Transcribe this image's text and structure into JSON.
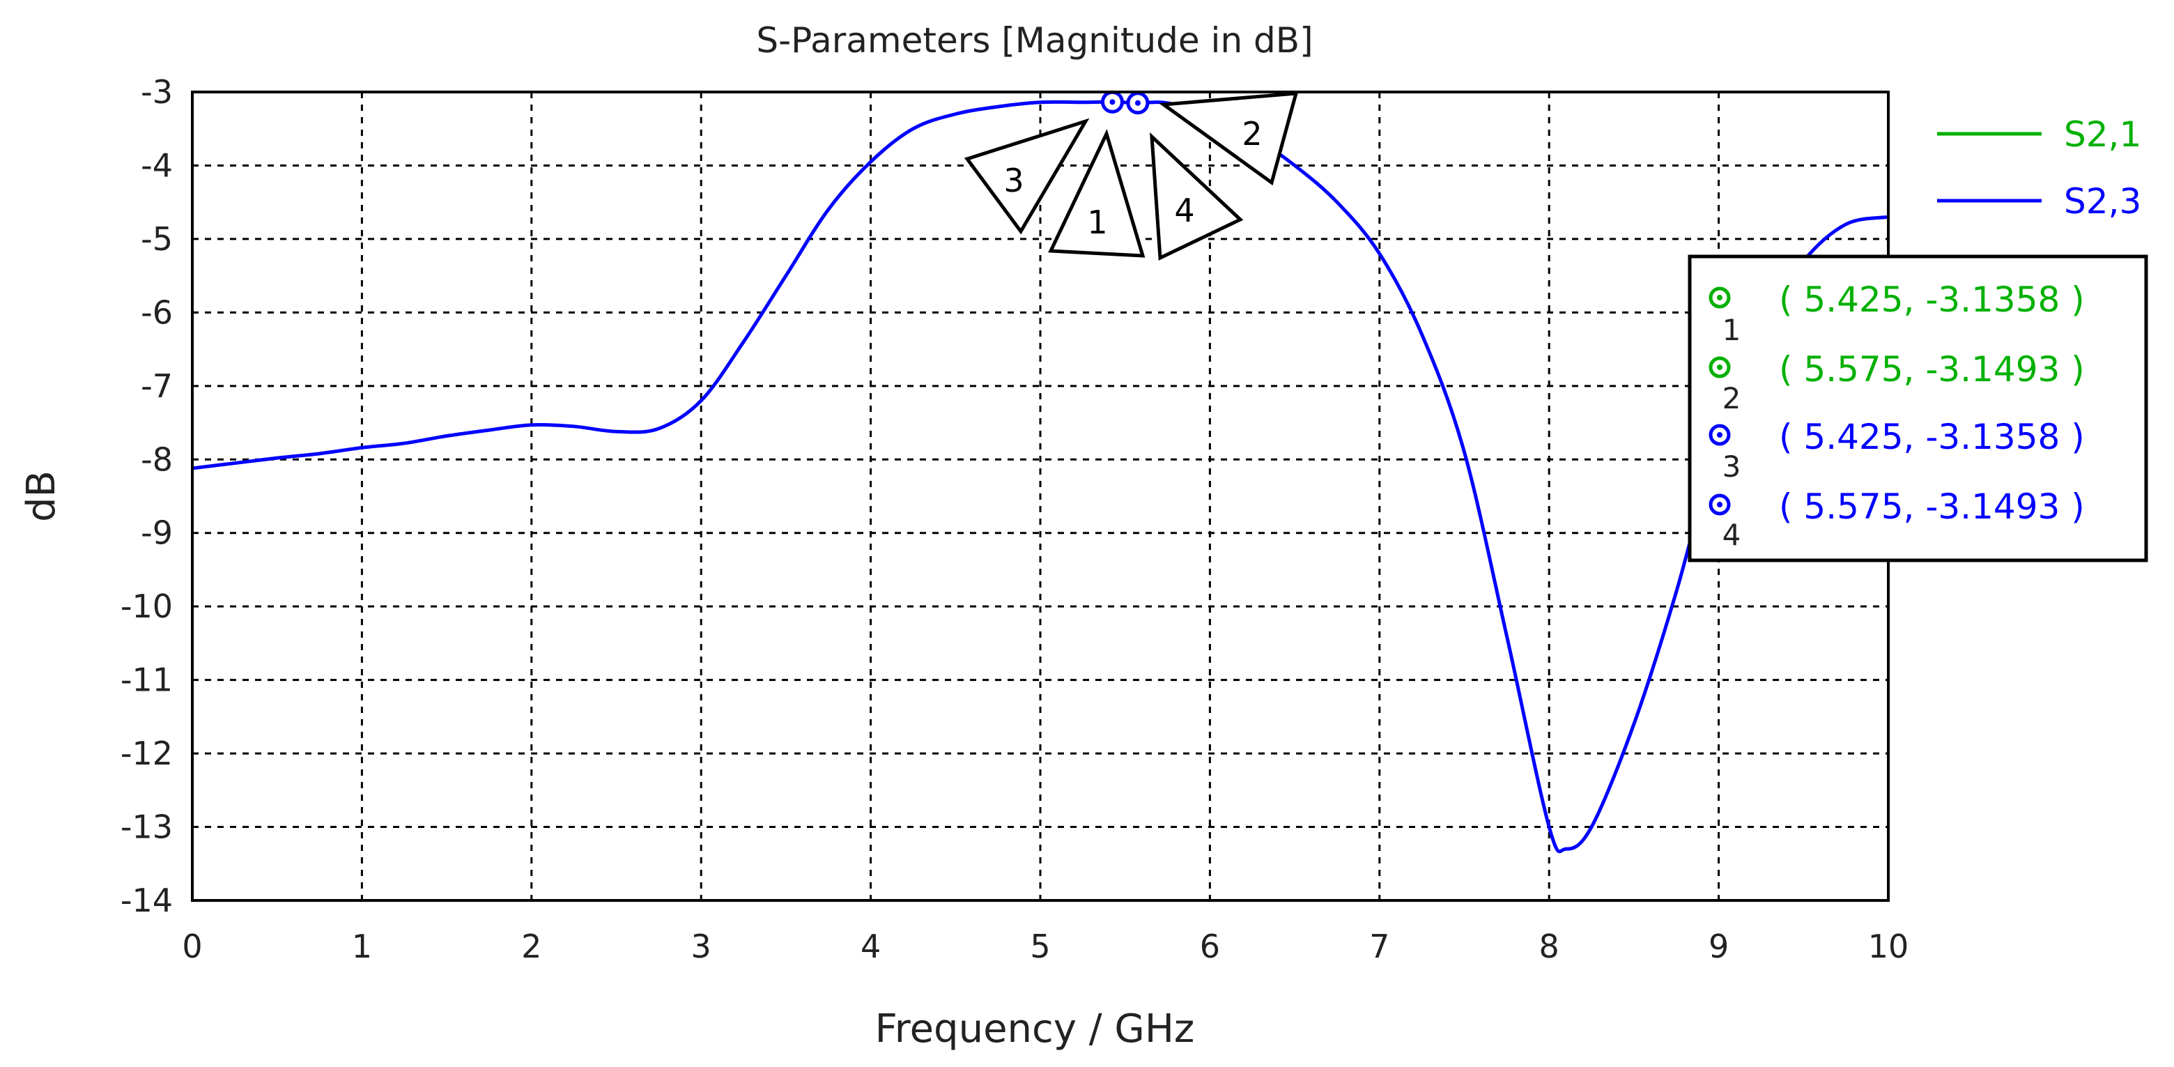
{
  "chart_data": {
    "type": "line",
    "title": "S-Parameters [Magnitude in dB]",
    "xlabel": "Frequency / GHz",
    "ylabel": "dB",
    "xlim": [
      0,
      10
    ],
    "ylim": [
      -14,
      -3
    ],
    "xticks": [
      0,
      1,
      2,
      3,
      4,
      5,
      6,
      7,
      8,
      9,
      10
    ],
    "yticks": [
      -3,
      -4,
      -5,
      -6,
      -7,
      -8,
      -9,
      -10,
      -11,
      -12,
      -13,
      -14
    ],
    "grid": true,
    "legend_position": "right",
    "series": [
      {
        "name": "S2,1",
        "color": "#00b000",
        "x": [],
        "y": []
      },
      {
        "name": "S2,3",
        "color": "#0000ff",
        "x": [
          0,
          0.25,
          0.5,
          0.75,
          1.0,
          1.25,
          1.5,
          1.75,
          2.0,
          2.25,
          2.5,
          2.75,
          3.0,
          3.25,
          3.5,
          3.75,
          4.0,
          4.25,
          4.5,
          4.75,
          5.0,
          5.25,
          5.425,
          5.575,
          5.75,
          6.0,
          6.25,
          6.5,
          6.75,
          7.0,
          7.25,
          7.5,
          7.75,
          8.0,
          8.1,
          8.25,
          8.5,
          8.75,
          9.0,
          9.25,
          9.5,
          9.75,
          10.0
        ],
        "y": [
          -8.12,
          -8.05,
          -7.98,
          -7.92,
          -7.84,
          -7.78,
          -7.68,
          -7.6,
          -7.53,
          -7.55,
          -7.62,
          -7.58,
          -7.2,
          -6.4,
          -5.5,
          -4.6,
          -3.95,
          -3.5,
          -3.3,
          -3.2,
          -3.14,
          -3.14,
          -3.1358,
          -3.1493,
          -3.15,
          -3.3,
          -3.6,
          -4.0,
          -4.5,
          -5.2,
          -6.3,
          -7.9,
          -10.4,
          -13.0,
          -13.3,
          -13.0,
          -11.6,
          -9.8,
          -7.7,
          -6.2,
          -5.3,
          -4.8,
          -4.7
        ]
      }
    ],
    "markers": [
      {
        "id": "1",
        "series": "S2,1",
        "color": "#00b000",
        "x": 5.425,
        "y": -3.1358,
        "readout": "( 5.425, -3.1358 )"
      },
      {
        "id": "2",
        "series": "S2,1",
        "color": "#00b000",
        "x": 5.575,
        "y": -3.1493,
        "readout": "( 5.575, -3.1493 )"
      },
      {
        "id": "3",
        "series": "S2,3",
        "color": "#0000ff",
        "x": 5.425,
        "y": -3.1358,
        "readout": "( 5.425, -3.1358 )"
      },
      {
        "id": "4",
        "series": "S2,3",
        "color": "#0000ff",
        "x": 5.575,
        "y": -3.1493,
        "readout": "( 5.575, -3.1493 )"
      }
    ]
  }
}
